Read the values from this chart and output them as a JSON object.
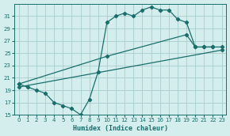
{
  "xlabel": "Humidex (Indice chaleur)",
  "bg_color": "#d4eeee",
  "grid_color": "#a8cccc",
  "line_color": "#1a6e6a",
  "xlim": [
    -0.5,
    23.5
  ],
  "ylim": [
    15,
    33
  ],
  "yticks": [
    15,
    17,
    19,
    21,
    23,
    25,
    27,
    29,
    31
  ],
  "xticks": [
    0,
    1,
    2,
    3,
    4,
    5,
    6,
    7,
    8,
    9,
    10,
    11,
    12,
    13,
    14,
    15,
    16,
    17,
    18,
    19,
    20,
    21,
    22,
    23
  ],
  "line1_x": [
    0,
    1,
    2,
    3,
    4,
    5,
    6,
    7,
    8,
    9,
    10,
    11,
    12,
    13,
    14,
    15,
    16,
    17,
    18,
    19,
    20,
    21,
    22
  ],
  "line1_y": [
    20.0,
    19.5,
    19.0,
    18.5,
    17.0,
    16.5,
    16.0,
    15.0,
    17.5,
    22.0,
    30.0,
    31.0,
    31.5,
    31.0,
    32.0,
    32.5,
    32.0,
    32.0,
    30.5,
    30.0,
    26.0,
    26.0,
    26.0
  ],
  "line2_x": [
    0,
    10,
    19,
    20,
    21,
    22,
    23
  ],
  "line2_y": [
    20.0,
    24.5,
    28.0,
    26.0,
    26.0,
    26.0,
    26.0
  ],
  "line3_x": [
    0,
    23
  ],
  "line3_y": [
    19.5,
    25.5
  ]
}
